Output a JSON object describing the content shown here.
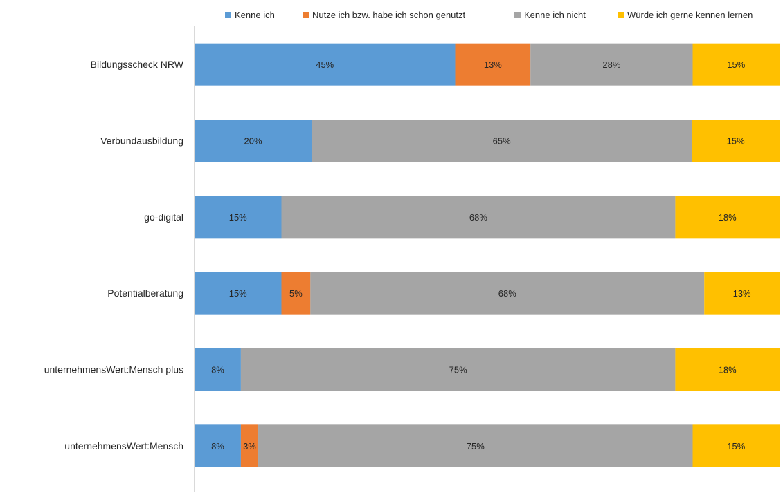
{
  "chart_data": {
    "type": "bar",
    "orientation": "horizontal",
    "stacked": true,
    "categories": [
      "Bildungsscheck NRW",
      "Verbundausbildung",
      "go-digital",
      "Potentialberatung",
      "unternehmensWert:Mensch plus",
      "unternehmensWert:Mensch"
    ],
    "series": [
      {
        "name": "Kenne ich",
        "color": "#5B9BD5",
        "values": [
          45,
          20,
          15,
          15,
          8,
          8
        ]
      },
      {
        "name": "Nutze ich bzw. habe ich schon genutzt",
        "color": "#ED7D31",
        "values": [
          13,
          0,
          0,
          5,
          0,
          3
        ]
      },
      {
        "name": "Kenne ich nicht",
        "color": "#A5A5A5",
        "values": [
          28,
          65,
          68,
          68,
          75,
          75
        ]
      },
      {
        "name": "Würde ich gerne kennen lernen",
        "color": "#FFC000",
        "values": [
          15,
          15,
          18,
          13,
          18,
          15
        ]
      }
    ],
    "data_labels": [
      [
        "45%",
        "20%",
        "15%",
        "15%",
        "8%",
        "8%"
      ],
      [
        "13%",
        "",
        "",
        "5%",
        "",
        "3%"
      ],
      [
        "28%",
        "65%",
        "68%",
        "68%",
        "75%",
        "75%"
      ],
      [
        "15%",
        "15%",
        "18%",
        "13%",
        "18%",
        "15%"
      ]
    ],
    "legend_position": "top",
    "grid": false
  }
}
